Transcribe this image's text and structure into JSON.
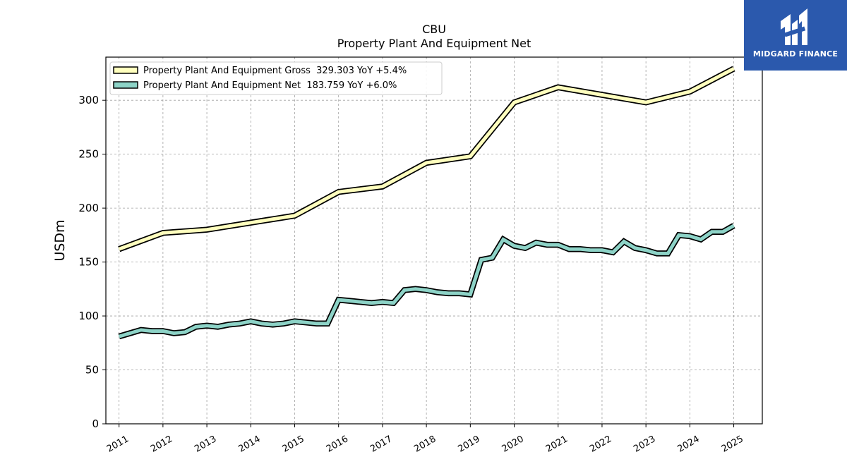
{
  "chart_data": {
    "type": "line",
    "title": "CBU",
    "subtitle": "Property Plant And Equipment Net",
    "xlabel": "",
    "ylabel": "USDm",
    "xlim": [
      2010.7,
      2025.65
    ],
    "ylim": [
      0,
      340
    ],
    "yticks": [
      0,
      50,
      100,
      150,
      200,
      250,
      300
    ],
    "xticks": [
      2011,
      2012,
      2013,
      2014,
      2015,
      2016,
      2017,
      2018,
      2019,
      2020,
      2021,
      2022,
      2023,
      2024,
      2025
    ],
    "xtick_labels": [
      "2011",
      "2012",
      "2013",
      "2014",
      "2015",
      "2016",
      "2017",
      "2018",
      "2019",
      "2020",
      "2021",
      "2022",
      "2023",
      "2024",
      "2025"
    ],
    "grid": true,
    "legend_position": "top-left",
    "series": [
      {
        "name": "Property Plant And Equipment Gross",
        "legend_label": "Property Plant And Equipment Gross  329.303 YoY +5.4%",
        "color": "#ffffbe",
        "x": [
          2011.0,
          2012.0,
          2013.0,
          2015.0,
          2016.0,
          2017.0,
          2018.0,
          2019.0,
          2020.0,
          2021.0,
          2022.0,
          2023.0,
          2024.0,
          2025.0
        ],
        "y": [
          162,
          177,
          180,
          193,
          215,
          220,
          242,
          248,
          298,
          312,
          305,
          298,
          308,
          329.303
        ]
      },
      {
        "name": "Property Plant And Equipment Net",
        "legend_label": "Property Plant And Equipment Net  183.759 YoY +6.0%",
        "color": "#8dd3c7",
        "x": [
          2011.0,
          2011.25,
          2011.5,
          2011.75,
          2012.0,
          2012.25,
          2012.5,
          2012.75,
          2013.0,
          2013.25,
          2013.5,
          2013.75,
          2014.0,
          2014.25,
          2014.5,
          2014.75,
          2015.0,
          2015.25,
          2015.5,
          2015.75,
          2016.0,
          2016.25,
          2016.5,
          2016.75,
          2017.0,
          2017.25,
          2017.5,
          2017.75,
          2018.0,
          2018.25,
          2018.5,
          2018.75,
          2019.0,
          2019.25,
          2019.5,
          2019.75,
          2020.0,
          2020.25,
          2020.5,
          2020.75,
          2021.0,
          2021.25,
          2021.5,
          2021.75,
          2022.0,
          2022.25,
          2022.5,
          2022.75,
          2023.0,
          2023.25,
          2023.5,
          2023.75,
          2024.0,
          2024.25,
          2024.5,
          2024.75,
          2025.0
        ],
        "y": [
          81,
          84,
          87,
          86,
          86,
          84,
          85,
          90,
          91,
          90,
          92,
          93,
          95,
          93,
          92,
          93,
          95,
          94,
          93,
          93,
          115,
          114,
          113,
          112,
          113,
          112,
          124,
          125,
          124,
          122,
          121,
          121,
          120,
          152,
          154,
          171,
          165,
          163,
          168,
          166,
          166,
          162,
          162,
          161,
          161,
          159,
          169,
          163,
          161,
          158,
          158,
          175,
          174,
          171,
          178,
          178,
          183.759
        ]
      }
    ]
  },
  "logo": {
    "text": "MIDGARD FINANCE",
    "color": "#2b59ad"
  }
}
